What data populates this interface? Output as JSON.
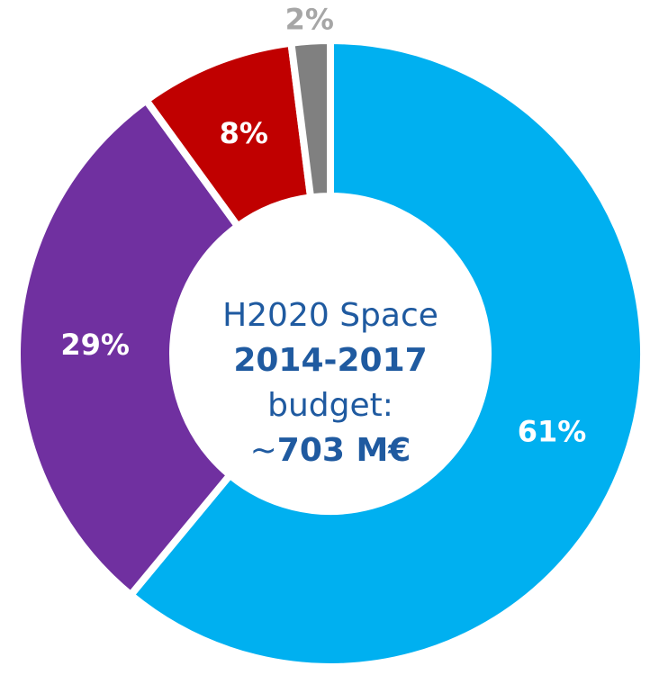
{
  "chart_data": {
    "type": "donut",
    "categories": [
      "61%",
      "29%",
      "8%",
      "2%"
    ],
    "values": [
      61,
      29,
      8,
      2
    ],
    "value_labels": [
      "61%",
      "29%",
      "8%",
      "2%"
    ],
    "colors": [
      "#00b0f0",
      "#7030a0",
      "#c00000",
      "#808080"
    ],
    "center_text": [
      "H2020 Space",
      "2014-2017",
      "budget:",
      "~",
      "703 M€"
    ]
  }
}
